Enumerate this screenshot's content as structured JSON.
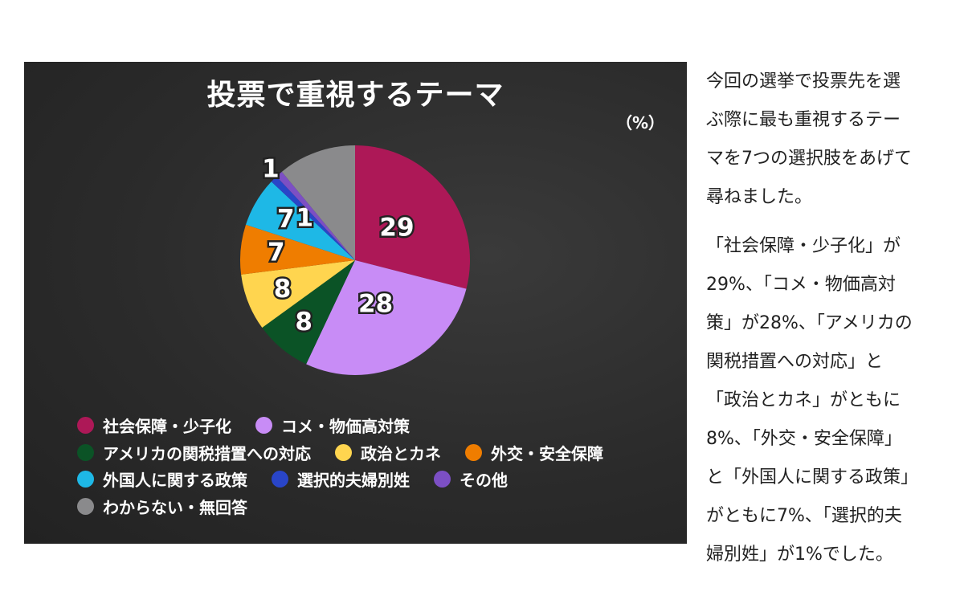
{
  "chart_data": {
    "type": "pie",
    "title": "投票で重視するテーマ",
    "unit_label": "（%）",
    "slices": [
      {
        "label": "社会保障・少子化",
        "value": 29,
        "color": "#ad1857"
      },
      {
        "label": "コメ・物価高対策",
        "value": 28,
        "color": "#c88cf6"
      },
      {
        "label": "アメリカの関税措置への対応",
        "value": 8,
        "color": "#0b5326"
      },
      {
        "label": "政治とカネ",
        "value": 8,
        "color": "#ffd54f"
      },
      {
        "label": "外交・安全保障",
        "value": 7,
        "color": "#ef7d00"
      },
      {
        "label": "外国人に関する政策",
        "value": 7,
        "color": "#1eb8e6"
      },
      {
        "label": "選択的夫婦別姓",
        "value": 1,
        "color": "#2945c8"
      },
      {
        "label": "その他",
        "value": 1,
        "color": "#7c4fc4"
      },
      {
        "label": "わからない・無回答",
        "value": 11,
        "color": "#8a8a8c"
      }
    ],
    "legend_position": "bottom"
  },
  "article": {
    "paragraphs": [
      "今回の選挙で投票先を選\nぶ際に最も重視するテー\nマを7つの選択肢をあげて\n尋ねました。",
      "「社会保障・少子化」が\n29%、「コメ・物価高対\n策」が28%、「アメリカの\n関税措置への対応」と\n「政治とカネ」がともに\n8%、「外交・安全保障」\nと「外国人に関する政策」\nがともに7%、「選択的夫\n婦別姓」が1%でした。"
    ]
  }
}
